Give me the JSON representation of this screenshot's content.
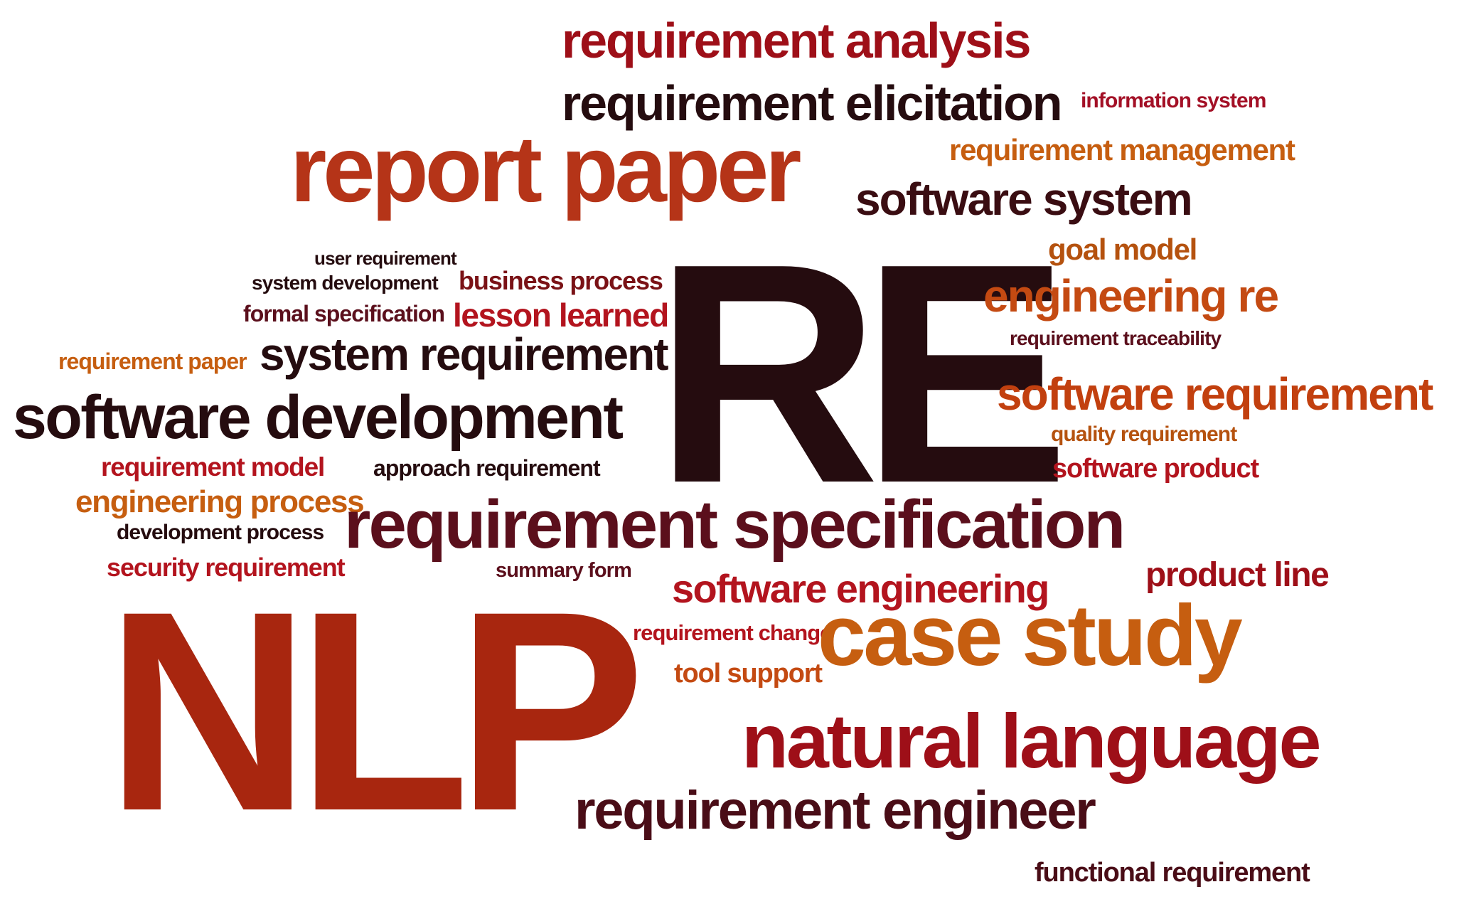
{
  "cloud": {
    "colors": {
      "red": "#9e0f18",
      "darkbrown": "#250c0f",
      "rust": "#b53418",
      "orange": "#c65e10",
      "maroon": "#5b0f1c",
      "crimson": "#a31026",
      "darkred": "#7a1216"
    },
    "words": [
      {
        "text": "requirement analysis",
        "color": "#9e0f18"
      },
      {
        "text": "requirement elicitation",
        "color": "#250c0f"
      },
      {
        "text": "information system",
        "color": "#a31026"
      },
      {
        "text": "report paper",
        "color": "#b53418"
      },
      {
        "text": "requirement management",
        "color": "#c65e10"
      },
      {
        "text": "software system",
        "color": "#3a0d12"
      },
      {
        "text": "user requirement",
        "color": "#250c0f"
      },
      {
        "text": "system development",
        "color": "#250c0f"
      },
      {
        "text": "business process",
        "color": "#7a1216"
      },
      {
        "text": "formal specification",
        "color": "#5b0f1c"
      },
      {
        "text": "lesson learned",
        "color": "#b3141e"
      },
      {
        "text": "requirement paper",
        "color": "#c65e10"
      },
      {
        "text": "system requirement",
        "color": "#250c0f"
      },
      {
        "text": "software development",
        "color": "#250c0f"
      },
      {
        "text": "RE",
        "color": "#250c0f"
      },
      {
        "text": "goal model",
        "color": "#b5520f"
      },
      {
        "text": "engineering re",
        "color": "#c44a12"
      },
      {
        "text": "requirement traceability",
        "color": "#5b0f1c"
      },
      {
        "text": "software requirement",
        "color": "#c2400f"
      },
      {
        "text": "quality requirement",
        "color": "#b5520f"
      },
      {
        "text": "software product",
        "color": "#b3141e"
      },
      {
        "text": "requirement model",
        "color": "#b3141e"
      },
      {
        "text": "approach requirement",
        "color": "#250c0f"
      },
      {
        "text": "engineering process",
        "color": "#c65e10"
      },
      {
        "text": "development process",
        "color": "#250c0f"
      },
      {
        "text": "requirement specification",
        "color": "#5b0f1c"
      },
      {
        "text": "security requirement",
        "color": "#b3141e"
      },
      {
        "text": "summary form",
        "color": "#5b0f1c"
      },
      {
        "text": "product line",
        "color": "#9e0f18"
      },
      {
        "text": "software engineering",
        "color": "#b3141e"
      },
      {
        "text": "NLP",
        "color": "#a8260f"
      },
      {
        "text": "requirement change",
        "color": "#b3141e"
      },
      {
        "text": "case study",
        "color": "#c65e10"
      },
      {
        "text": "tool support",
        "color": "#c44a12"
      },
      {
        "text": "natural language",
        "color": "#9e0f18"
      },
      {
        "text": "requirement engineer",
        "color": "#4a0d17"
      },
      {
        "text": "functional requirement",
        "color": "#4a0d17"
      }
    ]
  }
}
